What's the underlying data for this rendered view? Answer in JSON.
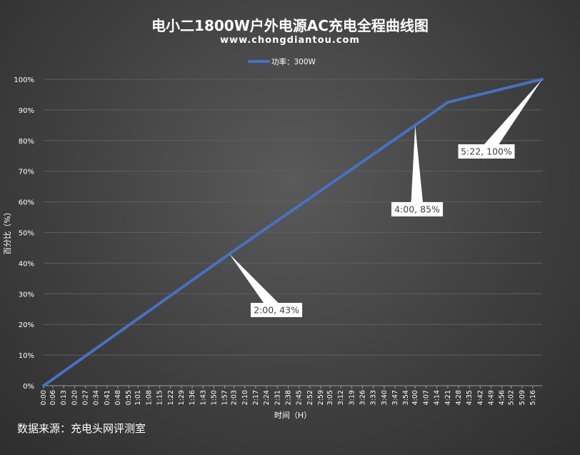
{
  "chart_data": {
    "type": "line",
    "title": "电小二1800W户外电源AC充电全程曲线图",
    "subtitle": "www.chongdiantou.com",
    "xlabel": "时间（H）",
    "ylabel": "百分比（%）",
    "ylim": [
      0,
      100
    ],
    "y_ticks": [
      "0%",
      "10%",
      "20%",
      "30%",
      "40%",
      "50%",
      "60%",
      "70%",
      "80%",
      "90%",
      "100%"
    ],
    "x_ticks": [
      "0:00",
      "0:06",
      "0:13",
      "0:20",
      "0:27",
      "0:34",
      "0:41",
      "0:48",
      "0:55",
      "1:01",
      "1:08",
      "1:15",
      "1:22",
      "1:29",
      "1:36",
      "1:43",
      "1:50",
      "1:57",
      "2:03",
      "2:10",
      "2:17",
      "2:24",
      "2:31",
      "2:38",
      "2:45",
      "2:52",
      "2:59",
      "3:05",
      "3:12",
      "3:19",
      "3:26",
      "3:33",
      "3:40",
      "3:47",
      "3:54",
      "4:00",
      "4:07",
      "4:14",
      "4:21",
      "4:28",
      "4:35",
      "4:42",
      "4:49",
      "4:56",
      "5:02",
      "5:09",
      "5:16"
    ],
    "legend_position": "top",
    "grid": "horizontal",
    "series": [
      {
        "name": "功率：300W",
        "color": "#4472c4",
        "points": [
          {
            "x": "0:00",
            "y": 0
          },
          {
            "x": "2:00",
            "y": 43
          },
          {
            "x": "4:00",
            "y": 85
          },
          {
            "x": "4:21",
            "y": 92.5
          },
          {
            "x": "5:22",
            "y": 100
          }
        ]
      }
    ],
    "annotations": [
      {
        "x": "2:00",
        "y": 43,
        "text": "2:00, 43%"
      },
      {
        "x": "4:00",
        "y": 85,
        "text": "4:00, 85%"
      },
      {
        "x": "5:22",
        "y": 100,
        "text": "5:22, 100%"
      }
    ]
  },
  "footer": {
    "source": "数据来源：充电头网评测室"
  }
}
